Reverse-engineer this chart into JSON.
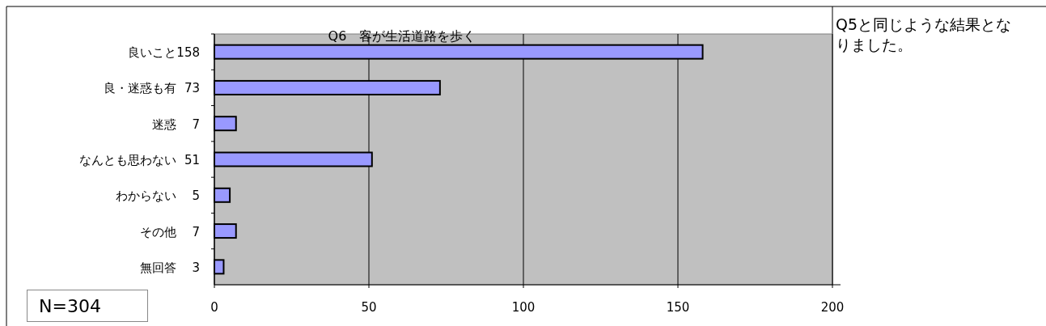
{
  "chart_data": {
    "type": "bar",
    "orientation": "horizontal",
    "title": "Q6　客が生活道路を歩く",
    "categories": [
      "良いこと",
      "良・迷惑も有",
      "迷惑",
      "なんとも思わない",
      "わからない",
      "その他",
      "無回答"
    ],
    "values": [
      158,
      73,
      7,
      51,
      5,
      7,
      3
    ],
    "color": "#9999ff",
    "data_labels": true,
    "xlim": [
      0,
      200
    ],
    "xticks": [
      0,
      50,
      100,
      150,
      200
    ],
    "grid": "x",
    "annotations": [
      "Q5と同じような結果となりました。",
      "N=304"
    ]
  }
}
